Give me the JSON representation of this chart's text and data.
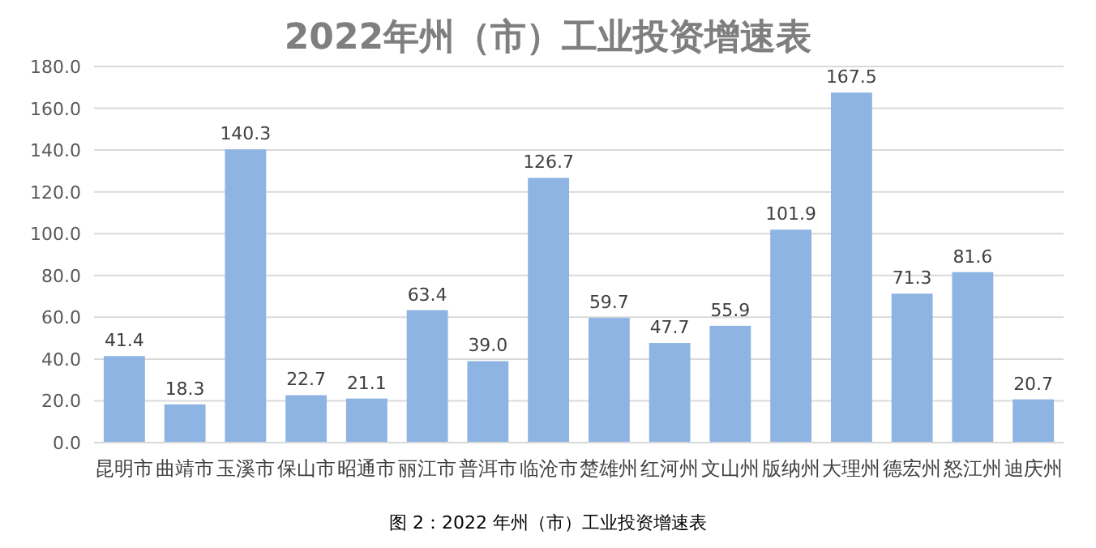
{
  "chart_data": {
    "type": "bar",
    "title": "2022年州（市）工业投资增速表",
    "categories": [
      "昆明市",
      "曲靖市",
      "玉溪市",
      "保山市",
      "昭通市",
      "丽江市",
      "普洱市",
      "临沧市",
      "楚雄州",
      "红河州",
      "文山州",
      "版纳州",
      "大理州",
      "德宏州",
      "怒江州",
      "迪庆州"
    ],
    "values": [
      41.4,
      18.3,
      140.3,
      22.7,
      21.1,
      63.4,
      39.0,
      126.7,
      59.7,
      47.7,
      55.9,
      101.9,
      167.5,
      71.3,
      81.6,
      20.7
    ],
    "value_labels": [
      "41.4",
      "18.3",
      "140.3",
      "22.7",
      "21.1",
      "63.4",
      "39.0",
      "126.7",
      "59.7",
      "47.7",
      "55.9",
      "101.9",
      "167.5",
      "71.3",
      "81.6",
      "20.7"
    ],
    "color": "#8db4e2",
    "ylim": [
      0,
      180
    ],
    "yticks": [
      {
        "value": 0,
        "label": "0.0"
      },
      {
        "value": 20,
        "label": "20.0"
      },
      {
        "value": 40,
        "label": "40.0"
      },
      {
        "value": 60,
        "label": "60.0"
      },
      {
        "value": 80,
        "label": "80.0"
      },
      {
        "value": 100,
        "label": "100.0"
      },
      {
        "value": 120,
        "label": "120.0"
      },
      {
        "value": 140,
        "label": "140.0"
      },
      {
        "value": 160,
        "label": "160.0"
      },
      {
        "value": 180,
        "label": "180.0"
      }
    ],
    "grid": "y",
    "annotations": [
      "图 2：2022 年州（市）工业投资增速表"
    ]
  }
}
